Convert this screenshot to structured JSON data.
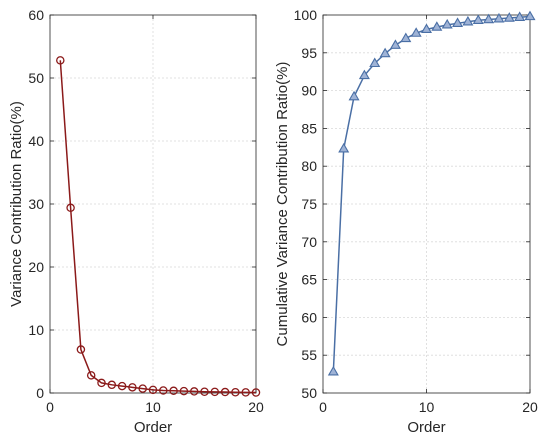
{
  "chart_data": [
    {
      "type": "line",
      "xlabel": "Order",
      "ylabel": "Variance Contribution Ratio(%)",
      "xlim": [
        0,
        20
      ],
      "ylim": [
        0,
        60
      ],
      "xticks": [
        0,
        10,
        20
      ],
      "yticks": [
        0,
        10,
        20,
        30,
        40,
        50,
        60
      ],
      "grid": true,
      "series": [
        {
          "marker": "circle",
          "color": "#8b1a1a",
          "x": [
            1,
            2,
            3,
            4,
            5,
            6,
            7,
            8,
            9,
            10,
            11,
            12,
            13,
            14,
            15,
            16,
            17,
            18,
            19,
            20
          ],
          "y": [
            52.8,
            29.4,
            6.9,
            2.8,
            1.6,
            1.3,
            1.1,
            0.9,
            0.7,
            0.5,
            0.4,
            0.35,
            0.3,
            0.25,
            0.2,
            0.18,
            0.15,
            0.12,
            0.1,
            0.08
          ]
        }
      ]
    },
    {
      "type": "line",
      "xlabel": "Order",
      "ylabel": "Cumulative Variance Contribution Ratio(%)",
      "xlim": [
        0,
        20
      ],
      "ylim": [
        50,
        100
      ],
      "xticks": [
        0,
        10,
        20
      ],
      "yticks": [
        50,
        55,
        60,
        65,
        70,
        75,
        80,
        85,
        90,
        95,
        100
      ],
      "grid": true,
      "series": [
        {
          "marker": "triangle",
          "color": "#4a6fa5",
          "x": [
            1,
            2,
            3,
            4,
            5,
            6,
            7,
            8,
            9,
            10,
            11,
            12,
            13,
            14,
            15,
            16,
            17,
            18,
            19,
            20
          ],
          "y": [
            52.8,
            82.3,
            89.2,
            92.0,
            93.6,
            94.9,
            96.0,
            96.9,
            97.6,
            98.1,
            98.4,
            98.7,
            98.9,
            99.1,
            99.3,
            99.4,
            99.5,
            99.6,
            99.7,
            99.8
          ]
        }
      ]
    }
  ]
}
